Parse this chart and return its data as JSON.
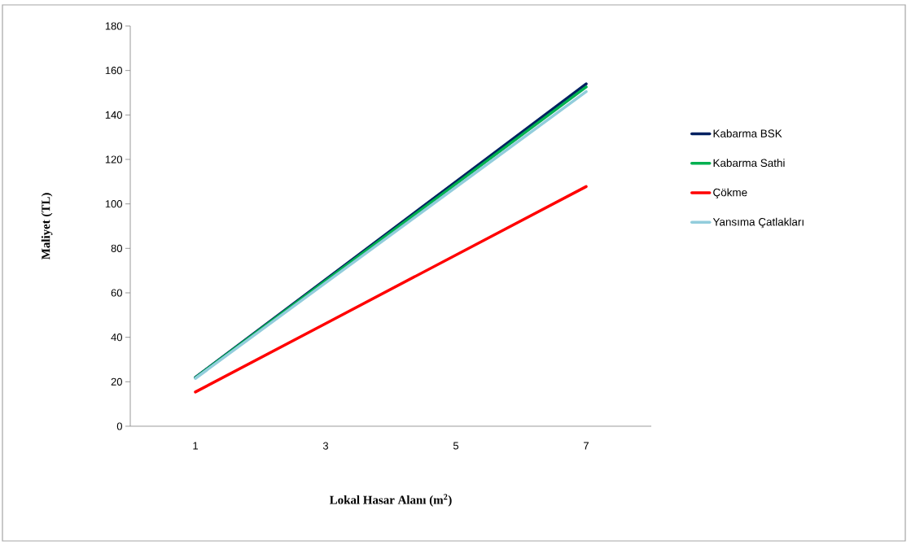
{
  "chart_data": {
    "type": "line",
    "xlabel": "Lokal Hasar Alanı (m$^{2}$)",
    "ylabel": "Maliyet (TL)",
    "categories": [
      "1",
      "3",
      "5",
      "7"
    ],
    "series": [
      {
        "name": "Kabarma BSK",
        "color": "#002060",
        "values": [
          22,
          66,
          110,
          154
        ]
      },
      {
        "name": "Kabarma Sathi",
        "color": "#00b050",
        "values": [
          21.8,
          65.4,
          109,
          152.6
        ]
      },
      {
        "name": "Çökme",
        "color": "#ff0000",
        "values": [
          15.4,
          46.2,
          77,
          107.8
        ]
      },
      {
        "name": "Yansıma Çatlakları",
        "color": "#92cddc",
        "values": [
          21.5,
          64.5,
          107.5,
          150.5
        ]
      }
    ],
    "ylim": [
      0,
      180
    ],
    "yticks": [
      0,
      20,
      40,
      60,
      80,
      100,
      120,
      140,
      160,
      180
    ],
    "legend": "right",
    "grid": false,
    "marker": "none",
    "line_style": "solid"
  }
}
